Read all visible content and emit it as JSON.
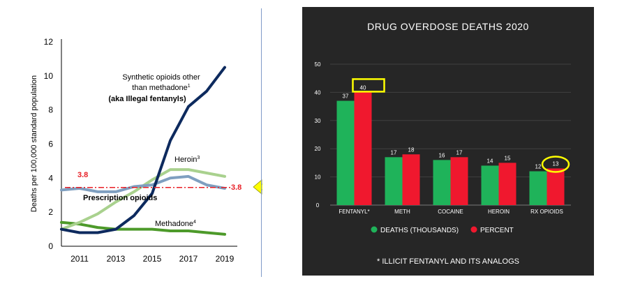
{
  "left_chart": {
    "ylabel": "Deaths per 100,000 standard population",
    "ylim": [
      0,
      12
    ],
    "yticks": [
      0,
      2,
      4,
      6,
      8,
      10,
      12
    ],
    "xlim": [
      2010,
      2019.5
    ],
    "xticks": [
      2011,
      2013,
      2015,
      2017,
      2019
    ],
    "reference_line": {
      "value": 3.8,
      "left_label": "3.8",
      "right_label": "3.8"
    },
    "annotations": {
      "synthetic_line1": "Synthetic opioids other",
      "synthetic_line2": "than methadone",
      "synthetic_sup": "1",
      "synthetic_aka": "(aka Illegal fentanyls)",
      "heroin": "Heroin",
      "heroin_sup": "3",
      "prescription": "Prescription opioids",
      "methadone": "Methadone",
      "methadone_sup": "4"
    },
    "colors": {
      "synthetic": "#0d2a5e",
      "heroin": "#a9d18e",
      "prescription": "#7f9fc0",
      "methadone": "#4d9a2a",
      "reference": "#e81e25",
      "arrow": "#ffff00"
    }
  },
  "chart_data": {
    "type": "bar",
    "title": "DRUG OVERDOSE DEATHS 2020",
    "categories": [
      "FENTANYL*",
      "METH",
      "COCAINE",
      "HEROIN",
      "RX OPIOIDS"
    ],
    "series": [
      {
        "name": "DEATHS (THOUSANDS)",
        "values": [
          37,
          17,
          16,
          14,
          12
        ],
        "color": "#1fb35a"
      },
      {
        "name": "PERCENT",
        "values": [
          40,
          18,
          17,
          15,
          13
        ],
        "color": "#f0182e"
      }
    ],
    "ylim": [
      0,
      50
    ],
    "yticks": [
      0,
      10,
      20,
      30,
      40,
      50
    ],
    "legend_position": "bottom",
    "footnote": "* ILLICIT FENTANYL AND ITS ANALOGS",
    "left_chart_series": [
      {
        "name": "Synthetic opioids other than methadone",
        "x": [
          2010,
          2011,
          2012,
          2013,
          2014,
          2015,
          2016,
          2017,
          2018,
          2019
        ],
        "values": [
          1.0,
          0.8,
          0.8,
          1.0,
          1.8,
          3.1,
          6.2,
          8.2,
          9.1,
          10.5
        ]
      },
      {
        "name": "Heroin",
        "x": [
          2010,
          2011,
          2012,
          2013,
          2014,
          2015,
          2016,
          2017,
          2018,
          2019
        ],
        "values": [
          1.0,
          1.4,
          1.9,
          2.6,
          3.2,
          3.9,
          4.5,
          4.5,
          4.3,
          4.1
        ]
      },
      {
        "name": "Prescription opioids",
        "x": [
          2010,
          2011,
          2012,
          2013,
          2014,
          2015,
          2016,
          2017,
          2018,
          2019
        ],
        "values": [
          3.3,
          3.4,
          3.2,
          3.2,
          3.5,
          3.6,
          4.0,
          4.1,
          3.6,
          3.4
        ]
      },
      {
        "name": "Methadone",
        "x": [
          2010,
          2011,
          2012,
          2013,
          2014,
          2015,
          2016,
          2017,
          2018,
          2019
        ],
        "values": [
          1.4,
          1.3,
          1.1,
          1.0,
          1.0,
          1.0,
          0.9,
          0.9,
          0.8,
          0.7
        ]
      }
    ]
  }
}
